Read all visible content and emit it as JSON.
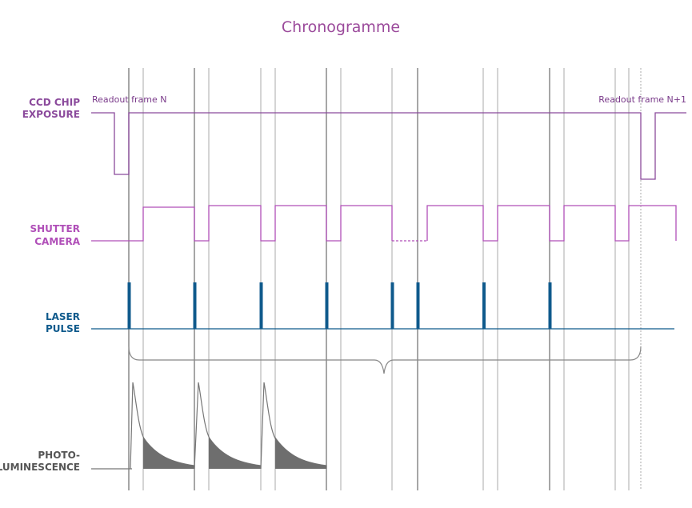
{
  "title": "Chronogramme",
  "labels": {
    "ccd_line1": "CCD CHIP",
    "ccd_line2": "EXPOSURE",
    "shutter_line1": "SHUTTER",
    "shutter_line2": "CAMERA",
    "laser_line1": "LASER",
    "laser_line2": "PULSE",
    "photo_line1": "PHOTO-",
    "photo_line2": "LUMINESCENCE"
  },
  "annotations": {
    "readout_n": "Readout frame N",
    "readout_n1": "Readout frame N+1"
  },
  "colors": {
    "ccd": "#8b4a9c",
    "shutter": "#b04fb8",
    "laser": "#0f5a8c",
    "photo": "#555555",
    "title": "#9b4a9b",
    "grid": "#aaaaaa"
  }
}
